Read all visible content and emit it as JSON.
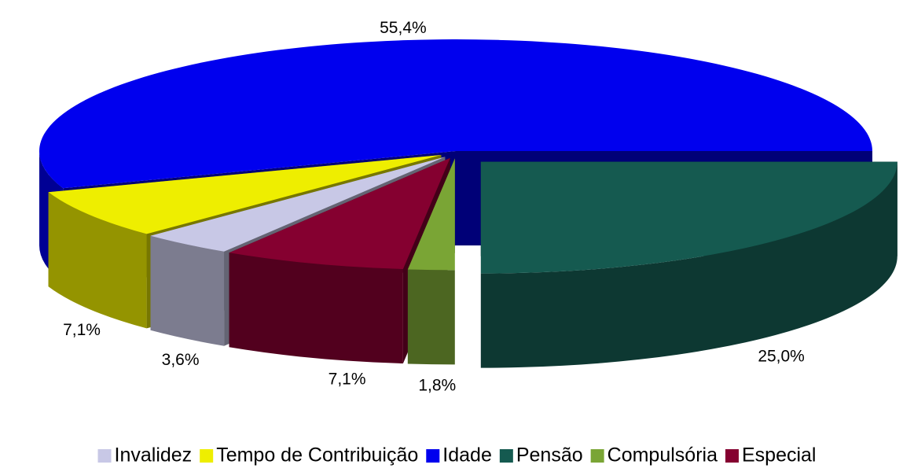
{
  "chart_data": {
    "type": "pie3d",
    "categories": [
      "Invalidez",
      "Tempo de Contribuição",
      "Idade",
      "Pensão",
      "Compulsória",
      "Especial"
    ],
    "values": [
      3.6,
      7.1,
      55.4,
      25.0,
      1.8,
      7.1
    ],
    "value_labels": [
      "3,6%",
      "7,1%",
      "55,4%",
      "25,0%",
      "1,8%",
      "7,1%"
    ],
    "colors": [
      "#c8c8e6",
      "#eeee00",
      "#0000ee",
      "#155a50",
      "#7aa535",
      "#850030"
    ],
    "legend": "bottom"
  }
}
